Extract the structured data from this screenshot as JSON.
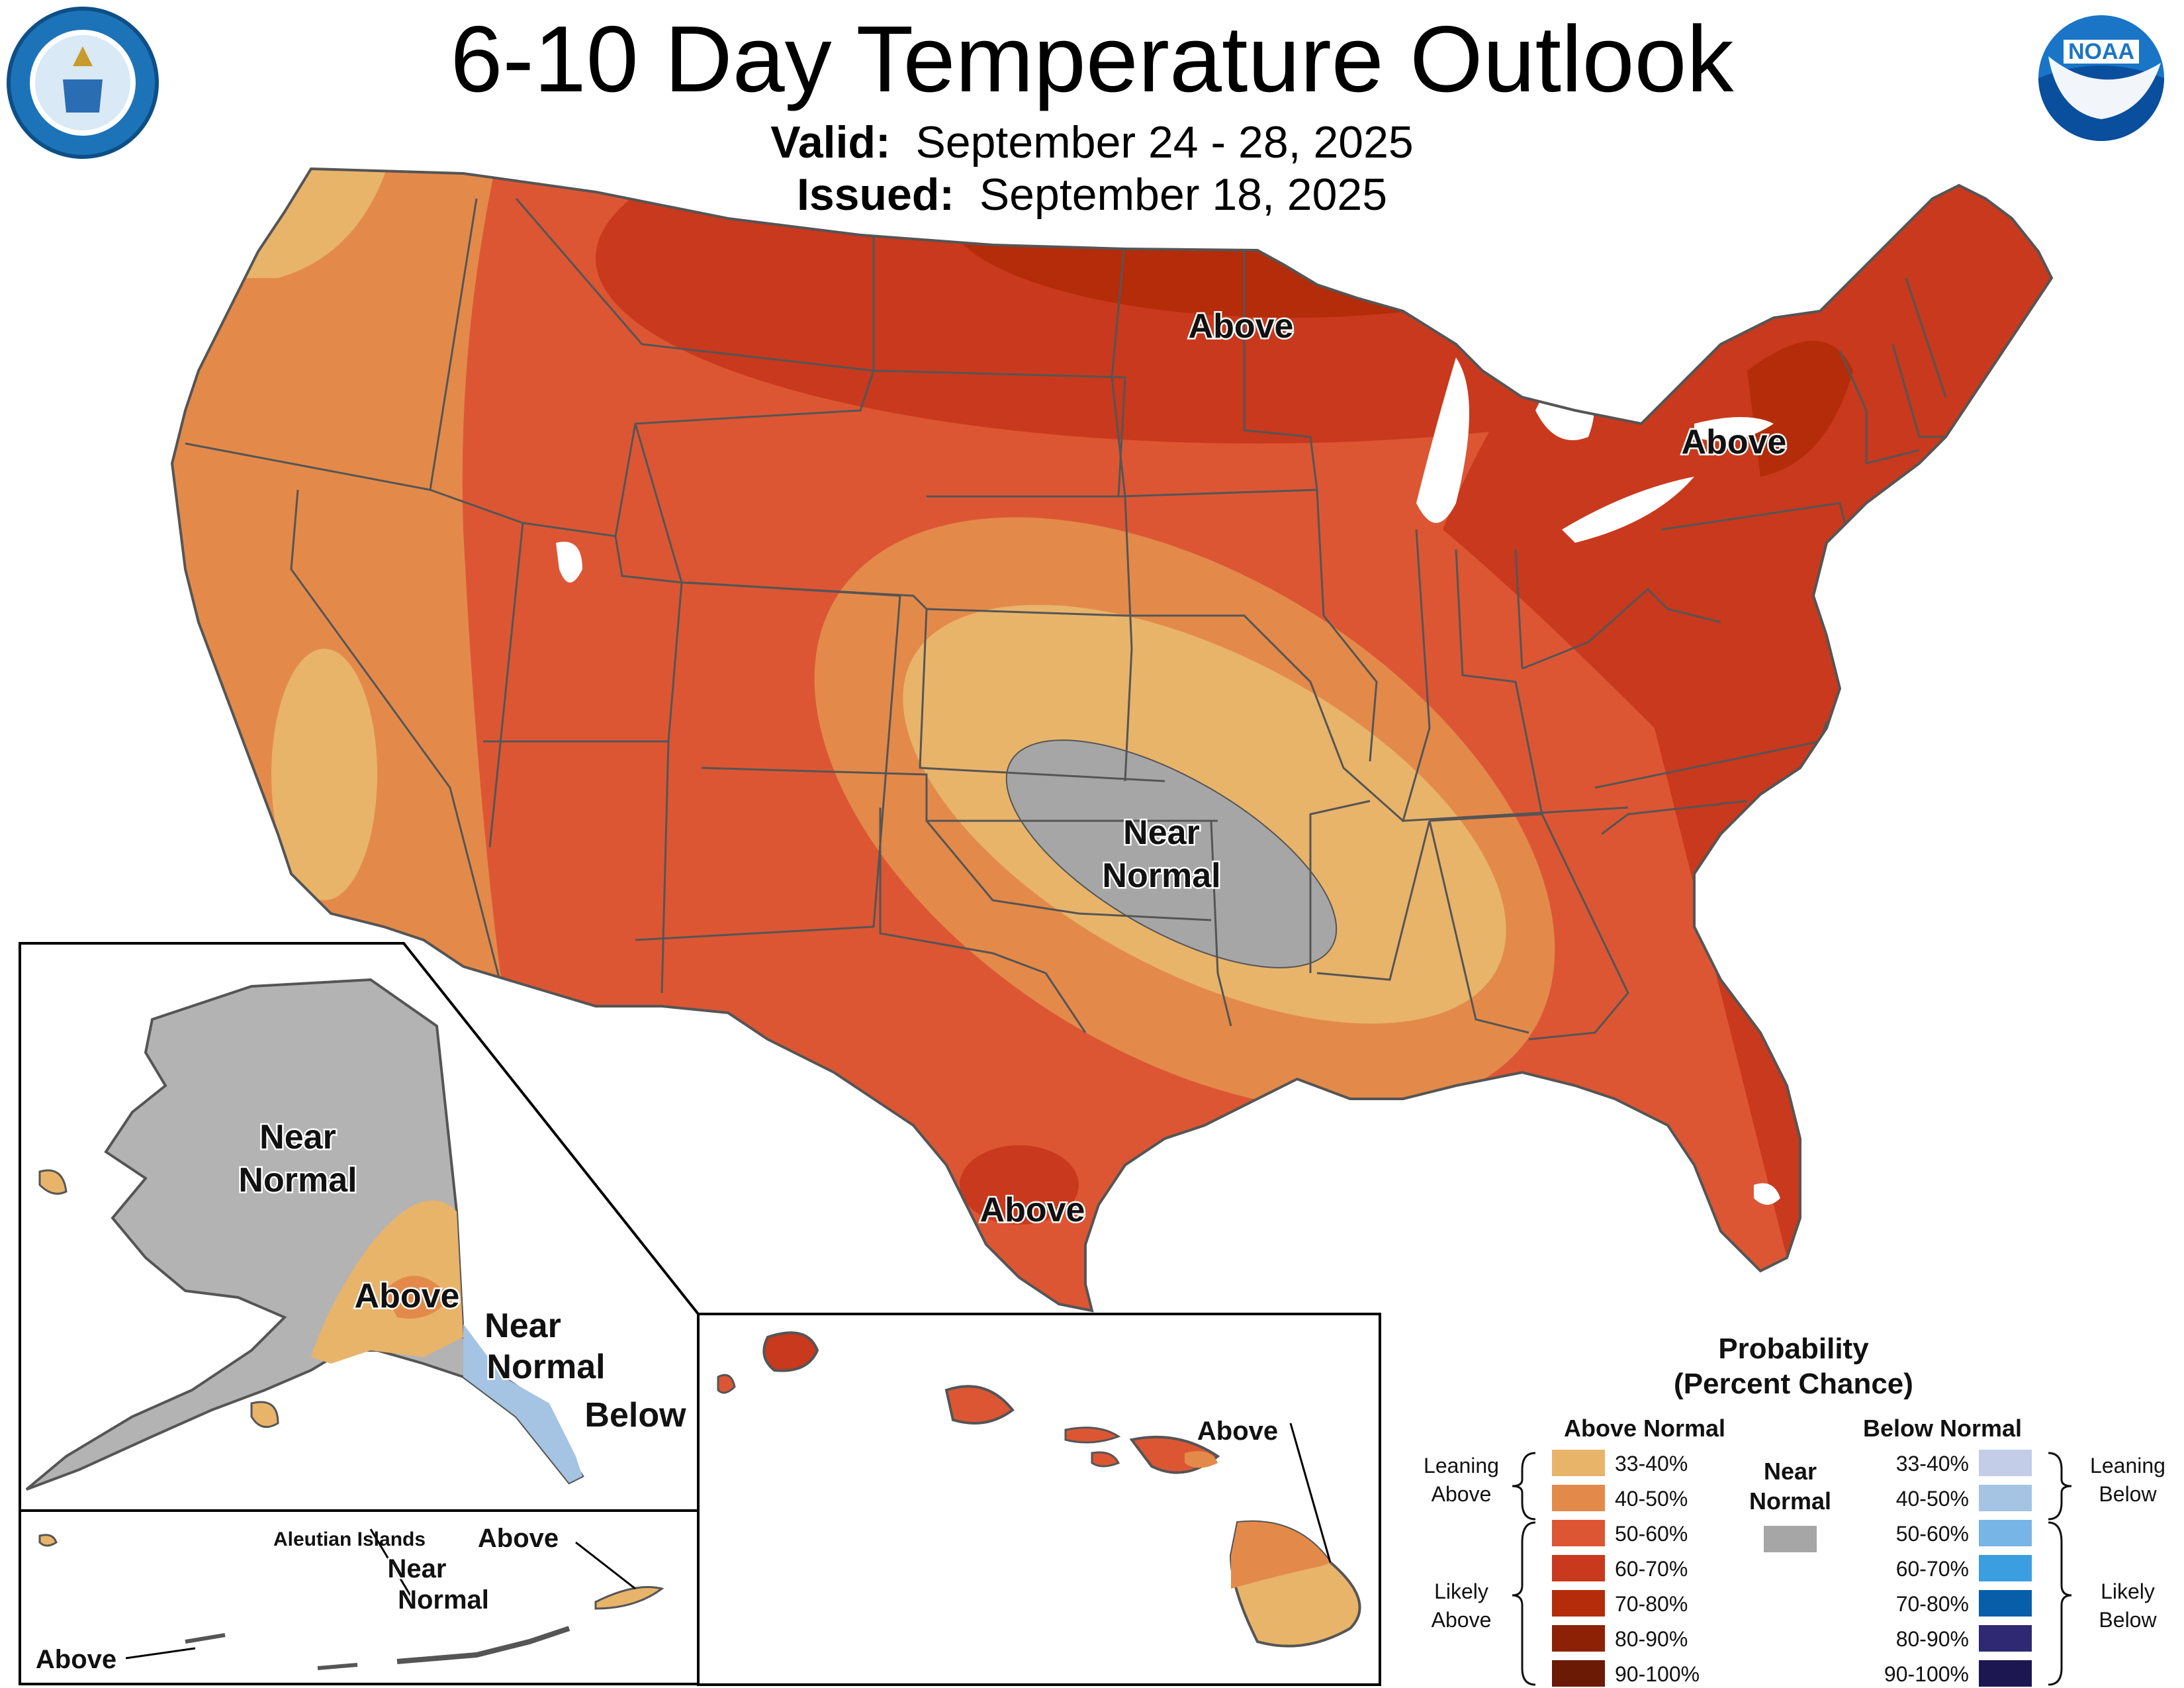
{
  "title": "6-10 Day Temperature Outlook",
  "valid_label": "Valid:",
  "valid_value": "September 24 - 28, 2025",
  "issued_label": "Issued:",
  "issued_value": "September 18, 2025",
  "map_labels": {
    "above_north": "Above",
    "above_northeast": "Above",
    "near_normal_center_1": "Near",
    "near_normal_center_2": "Normal",
    "above_texas": "Above",
    "ak_near_normal_1": "Near",
    "ak_near_normal_2": "Normal",
    "ak_above": "Above",
    "ak_se_near_1": "Near",
    "ak_se_near_2": "Normal",
    "ak_below": "Below",
    "hi_above": "Above",
    "aleutian_title": "Aleutian Islands",
    "aleutian_above_left": "Above",
    "aleutian_near_1": "Near",
    "aleutian_near_2": "Normal",
    "aleutian_above_right": "Above"
  },
  "legend": {
    "title_1": "Probability",
    "title_2": "(Percent Chance)",
    "above_header": "Above Normal",
    "below_header": "Below Normal",
    "near_1": "Near",
    "near_2": "Normal",
    "near_color": "#a6a6a6",
    "leaning_above_1": "Leaning",
    "leaning_above_2": "Above",
    "likely_above_1": "Likely",
    "likely_above_2": "Above",
    "leaning_below_1": "Leaning",
    "leaning_below_2": "Below",
    "likely_below_1": "Likely",
    "likely_below_2": "Below",
    "above_bins": [
      {
        "label": "33-40%",
        "color": "#e8b46a"
      },
      {
        "label": "40-50%",
        "color": "#e38a4a"
      },
      {
        "label": "50-60%",
        "color": "#dc5634"
      },
      {
        "label": "60-70%",
        "color": "#c9391d"
      },
      {
        "label": "70-80%",
        "color": "#b42c09"
      },
      {
        "label": "80-90%",
        "color": "#8c2106"
      },
      {
        "label": "90-100%",
        "color": "#6b1a05"
      }
    ],
    "below_bins": [
      {
        "label": "33-40%",
        "color": "#c3cde8"
      },
      {
        "label": "40-50%",
        "color": "#a5c3e3"
      },
      {
        "label": "50-60%",
        "color": "#76b5e5"
      },
      {
        "label": "60-70%",
        "color": "#3a9ee0"
      },
      {
        "label": "70-80%",
        "color": "#085ea8"
      },
      {
        "label": "80-90%",
        "color": "#2f2872"
      },
      {
        "label": "90-100%",
        "color": "#1c1750"
      }
    ]
  }
}
